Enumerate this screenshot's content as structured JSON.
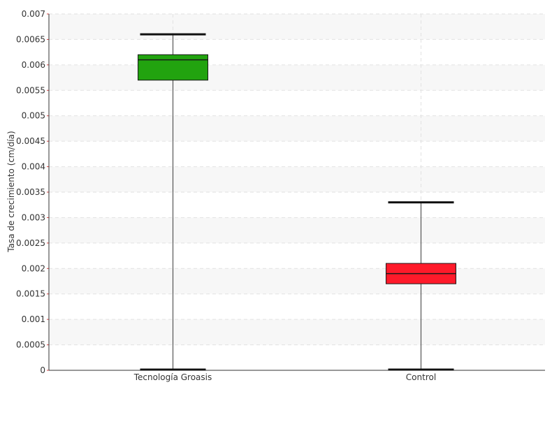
{
  "chart_data": {
    "type": "boxplot",
    "ylabel": "Tasa de crecimiento (cm/día)",
    "ylim": [
      0,
      0.007
    ],
    "y_ticks": [
      "0",
      "0.0005",
      "0.001",
      "0.0015",
      "0.002",
      "0.0025",
      "0.003",
      "0.0035",
      "0.004",
      "0.0045",
      "0.005",
      "0.0055",
      "0.006",
      "0.0065",
      "0.007"
    ],
    "grid": true,
    "categories": [
      "Tecnología Groasis",
      "Control"
    ],
    "boxes": [
      {
        "category": "Tecnología Groasis",
        "whisker_low": 0,
        "q1": 0.0057,
        "median": 0.0061,
        "q3": 0.0062,
        "whisker_high": 0.0066,
        "color": "#22a30f"
      },
      {
        "category": "Control",
        "whisker_low": 0,
        "q1": 0.0017,
        "median": 0.0019,
        "q3": 0.0021,
        "whisker_high": 0.0033,
        "color": "#ff1a2a"
      }
    ]
  }
}
